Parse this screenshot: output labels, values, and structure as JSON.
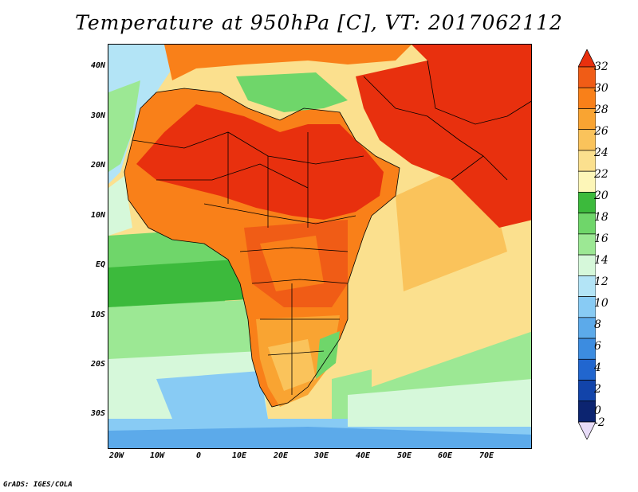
{
  "title": "Temperature at 950hPa [C], VT: 2017062112",
  "credit": "GrADS: IGES/COLA",
  "map": {
    "lat_labels": [
      "40N",
      "30N",
      "20N",
      "10N",
      "EQ",
      "10S",
      "20S",
      "30S"
    ],
    "lon_labels": [
      "20W",
      "10W",
      "0",
      "10E",
      "20E",
      "30E",
      "40E",
      "50E",
      "60E",
      "70E"
    ],
    "extent": {
      "lon_min": -21,
      "lon_max": 82,
      "lat_min": -36,
      "lat_max": 44.5
    }
  },
  "colorbar": {
    "labels": [
      "32",
      "30",
      "28",
      "26",
      "24",
      "22",
      "20",
      "18",
      "16",
      "14",
      "12",
      "10",
      "8",
      "6",
      "4",
      "2",
      "0",
      "-2"
    ],
    "colors": [
      "#e8300e",
      "#f05c16",
      "#f98019",
      "#f9a432",
      "#fac35b",
      "#fbe08e",
      "#fdf6b8",
      "#3cba3c",
      "#6fd66a",
      "#9ce894",
      "#d6f8da",
      "#b3e4f6",
      "#88cbf4",
      "#5caaea",
      "#3c8ce0",
      "#2166cf",
      "#1244aa",
      "#0c2470",
      "#e8dcf8"
    ]
  }
}
